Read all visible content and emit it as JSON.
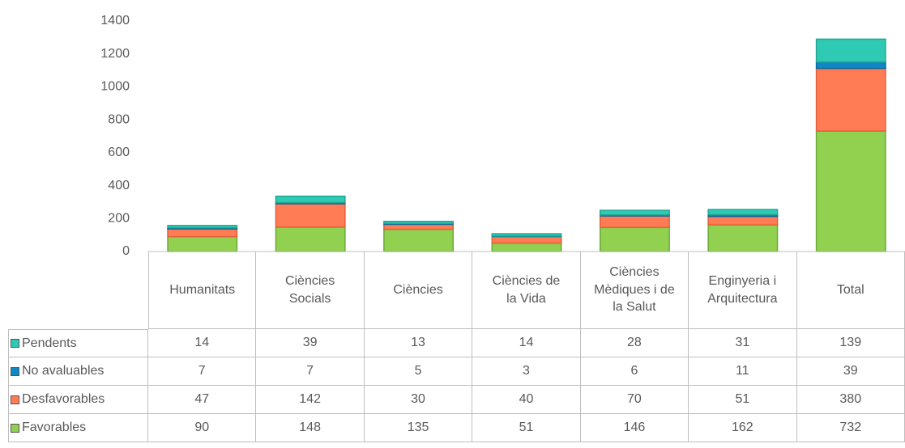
{
  "chart_data": {
    "type": "stacked_bar",
    "categories": [
      "Humanitats",
      "Ciències Socials",
      "Ciències",
      "Ciències de la Vida",
      "Ciències Mèdiques i de la Salut",
      "Enginyeria i Arquitectura",
      "Total"
    ],
    "series": [
      {
        "name": "Favorables",
        "color": "#92d050",
        "values": [
          90,
          148,
          135,
          51,
          146,
          162,
          732
        ]
      },
      {
        "name": "Desfavorables",
        "color": "#ff7c55",
        "values": [
          47,
          142,
          30,
          40,
          70,
          51,
          380
        ]
      },
      {
        "name": "No avaluables",
        "color": "#0f86c6",
        "values": [
          7,
          7,
          5,
          3,
          6,
          11,
          39
        ]
      },
      {
        "name": "Pendents",
        "color": "#2fcab4",
        "values": [
          14,
          39,
          13,
          14,
          28,
          31,
          139
        ]
      }
    ],
    "ylim": [
      0,
      1400
    ],
    "yticks": [
      0,
      200,
      400,
      600,
      800,
      1000,
      1200,
      1400
    ]
  }
}
